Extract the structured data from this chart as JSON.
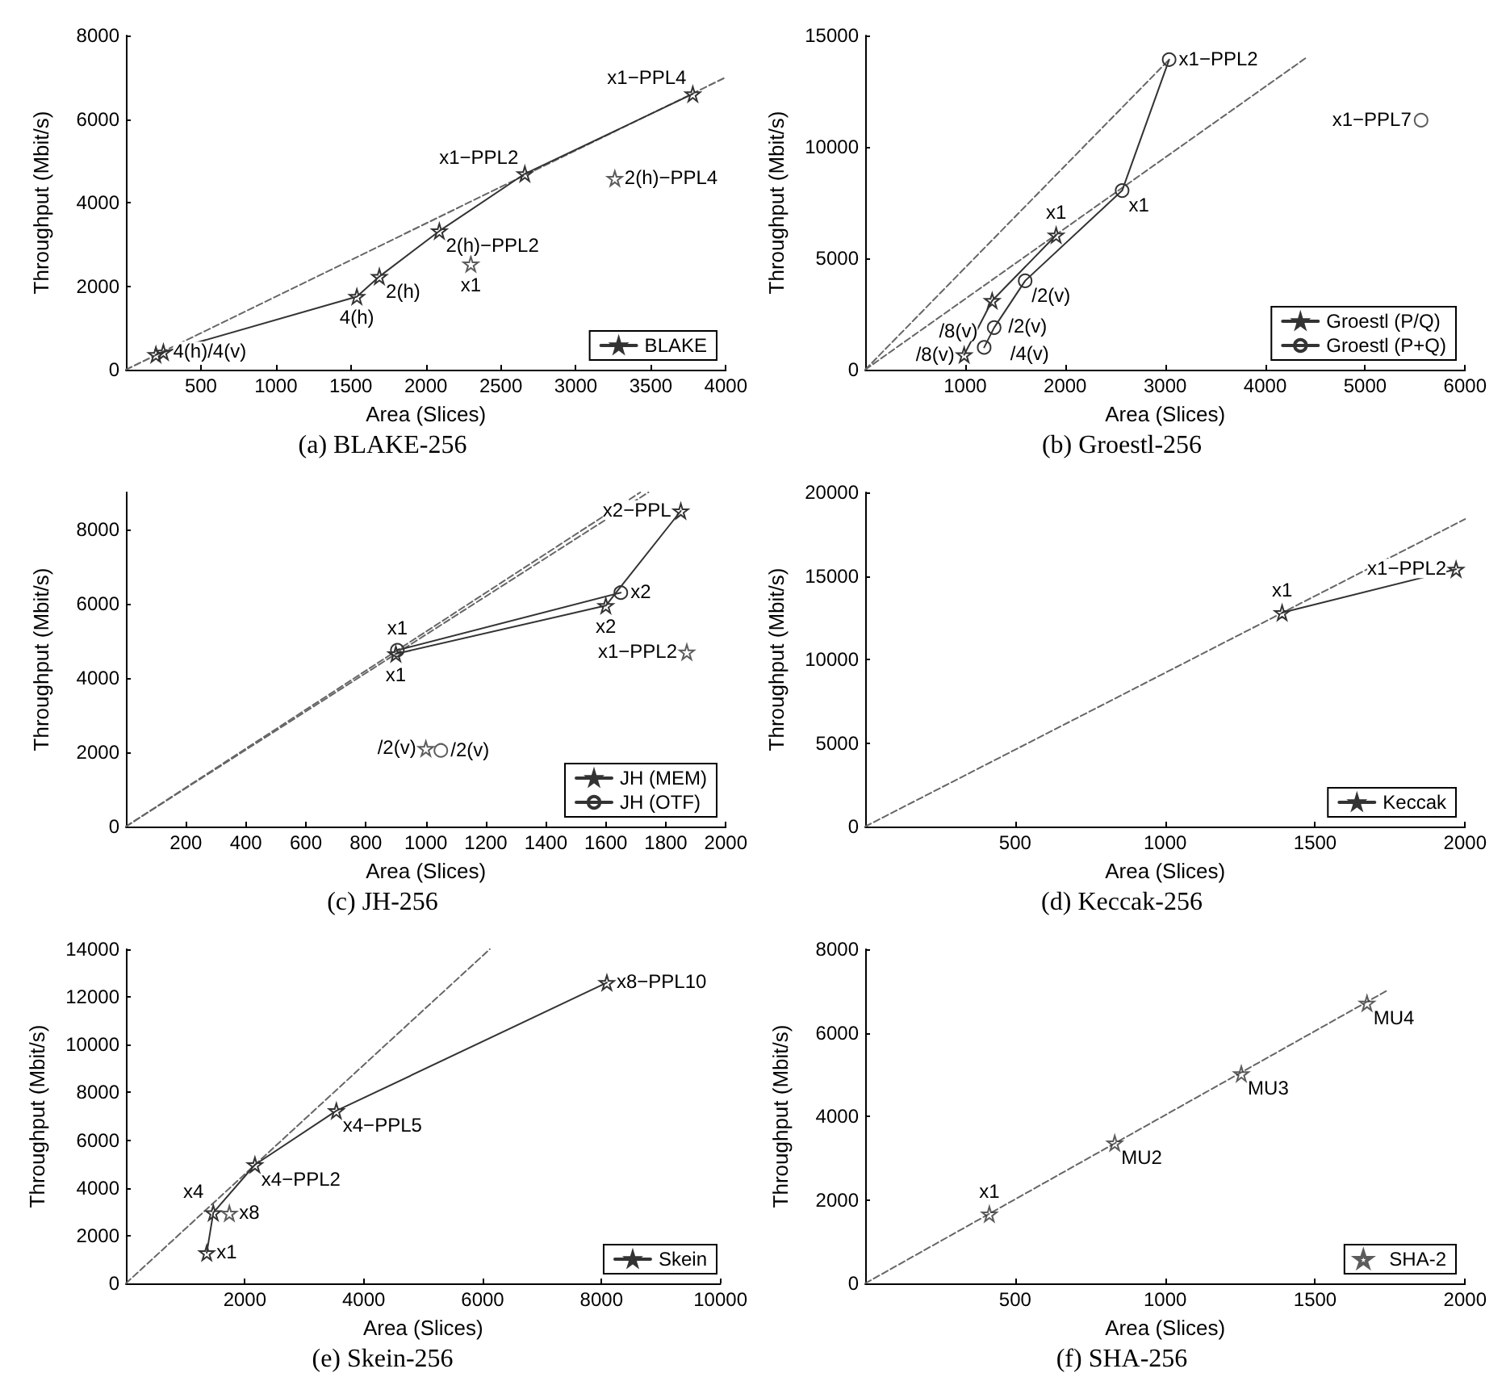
{
  "chart_data": [
    {
      "type": "line",
      "title": "(a) BLAKE-256",
      "xlabel": "Area (Slices)",
      "ylabel": "Throughput (Mbit/s)",
      "xlim": [
        0,
        4000
      ],
      "xticks": [
        500,
        1000,
        1500,
        2000,
        2500,
        3000,
        3500,
        4000
      ],
      "ylim": [
        0,
        8000
      ],
      "yticks": [
        0,
        2000,
        4000,
        6000,
        8000
      ],
      "legend": "bottom right",
      "series": [
        {
          "name": "BLAKE",
          "color": "#333333",
          "marker": "star",
          "x": [
            200,
            250,
            1540,
            1690,
            2090,
            2660,
            3780
          ],
          "values": [
            360,
            420,
            1750,
            2230,
            3320,
            4690,
            6600
          ]
        },
        {
          "type": "scatter",
          "color": "#333333",
          "marker": "star",
          "x": [
            2300,
            3260
          ],
          "values": [
            2530,
            4580
          ]
        },
        {
          "color": "#666666",
          "marker": "none",
          "line_style": "dashed",
          "x": [
            0,
            4000
          ],
          "values": [
            0,
            7000
          ]
        }
      ],
      "annotations": [
        {
          "text": "4(h)/4(v)",
          "x": 250,
          "y": 420
        },
        {
          "text": "4(h)",
          "x": 1540,
          "y": 1750
        },
        {
          "text": "2(h)",
          "x": 1690,
          "y": 2230
        },
        {
          "text": "2(h)−PPL2",
          "x": 2090,
          "y": 3320
        },
        {
          "text": "x1−PPL2",
          "x": 2660,
          "y": 4690
        },
        {
          "text": "x1−PPL4",
          "x": 3780,
          "y": 6600
        },
        {
          "text": "x1",
          "x": 2300,
          "y": 2530
        },
        {
          "text": "2(h)−PPL4",
          "x": 3260,
          "y": 4580
        }
      ]
    },
    {
      "type": "line",
      "title": "(b) Groestl-256",
      "xlabel": "Area (Slices)",
      "ylabel": "Throughput (Mbit/s)",
      "xlim": [
        0,
        6000
      ],
      "xticks": [
        1000,
        2000,
        3000,
        4000,
        5000,
        6000
      ],
      "ylim": [
        0,
        15000
      ],
      "yticks": [
        0,
        5000,
        10000,
        15000
      ],
      "legend": "bottom right",
      "series": [
        {
          "name": "Groestl (P/Q)",
          "color": "#333333",
          "marker": "star",
          "x": [
            990,
            1270,
            1910
          ],
          "values": [
            670,
            3100,
            6040
          ]
        },
        {
          "name": "Groestl (P+Q)",
          "color": "#333333",
          "marker": "circle",
          "x": [
            1190,
            1290,
            1600,
            2570,
            3040
          ],
          "values": [
            1000,
            1890,
            3990,
            8040,
            13920
          ]
        },
        {
          "type": "scatter",
          "color": "#333333",
          "marker": "circle",
          "x": [
            5560
          ],
          "values": [
            11200
          ]
        },
        {
          "color": "#666666",
          "marker": "none",
          "line_style": "dashed",
          "x": [
            0,
            3040
          ],
          "values": [
            0,
            13920
          ]
        },
        {
          "color": "#666666",
          "marker": "none",
          "line_style": "dashed",
          "x": [
            0,
            4410
          ],
          "values": [
            0,
            14000
          ]
        }
      ],
      "annotations": [
        {
          "text": "/8(v)",
          "x": 990,
          "y": 670
        },
        {
          "text": "/2(v)",
          "x": 1270,
          "y": 3100
        },
        {
          "text": "x1",
          "x": 1910,
          "y": 6040
        },
        {
          "text": "/8(v)",
          "x": 1190,
          "y": 1000
        },
        {
          "text": "/4(v)",
          "x": 1290,
          "y": 1890
        },
        {
          "text": "/2(v)",
          "x": 1600,
          "y": 3990
        },
        {
          "text": "x1",
          "x": 2570,
          "y": 8040
        },
        {
          "text": "x1−PPL2",
          "x": 3040,
          "y": 13920
        },
        {
          "text": "x1−PPL7",
          "x": 5560,
          "y": 11200
        }
      ]
    },
    {
      "type": "line",
      "title": "(c) JH-256",
      "xlabel": "Area (Slices)",
      "ylabel": "Throughput (Mbit/s)",
      "xlim": [
        0,
        2000
      ],
      "xticks": [
        200,
        400,
        600,
        800,
        1000,
        1200,
        1400,
        1600,
        1800,
        2000
      ],
      "ylim": [
        0,
        9000
      ],
      "yticks": [
        0,
        2000,
        4000,
        6000,
        8000
      ],
      "legend": "bottom right",
      "series": [
        {
          "name": "JH (MEM)",
          "color": "#333333",
          "marker": "star",
          "x": [
            900,
            1600,
            1850
          ],
          "values": [
            4650,
            5950,
            8500
          ]
        },
        {
          "name": "JH (OTF)",
          "color": "#333333",
          "marker": "circle",
          "x": [
            905,
            1650
          ],
          "values": [
            4750,
            6300
          ]
        },
        {
          "type": "scatter",
          "color": "#333333",
          "marker": "star",
          "x": [
            1000,
            1870
          ],
          "values": [
            2100,
            4700
          ]
        },
        {
          "type": "scatter",
          "color": "#333333",
          "marker": "circle",
          "x": [
            1050
          ],
          "values": [
            2050
          ]
        },
        {
          "color": "#666666",
          "marker": "none",
          "line_style": "dashed",
          "x": [
            0,
            1742
          ],
          "values": [
            0,
            9000
          ]
        },
        {
          "color": "#666666",
          "marker": "none",
          "line_style": "dashed",
          "x": [
            0,
            1715
          ],
          "values": [
            0,
            9000
          ]
        }
      ],
      "annotations": [
        {
          "text": "x1",
          "x": 900,
          "y": 4650
        },
        {
          "text": "x1",
          "x": 905,
          "y": 4750
        },
        {
          "text": "x2",
          "x": 1600,
          "y": 5950
        },
        {
          "text": "x2",
          "x": 1650,
          "y": 6300
        },
        {
          "text": "x2−PPL",
          "x": 1850,
          "y": 8500
        },
        {
          "text": "x1−PPL2",
          "x": 1870,
          "y": 4700
        },
        {
          "text": "/2(v)",
          "x": 1000,
          "y": 2100
        },
        {
          "text": "/2(v)",
          "x": 1050,
          "y": 2050
        }
      ]
    },
    {
      "type": "line",
      "title": "(d) Keccak-256",
      "xlabel": "Area (Slices)",
      "ylabel": "Throughput (Mbit/s)",
      "xlim": [
        0,
        2000
      ],
      "xticks": [
        500,
        1000,
        1500,
        2000
      ],
      "ylim": [
        0,
        20000
      ],
      "yticks": [
        0,
        5000,
        10000,
        15000,
        20000
      ],
      "legend": "bottom right",
      "series": [
        {
          "name": "Keccak",
          "color": "#333333",
          "marker": "star",
          "x": [
            1390,
            1970
          ],
          "values": [
            12800,
            15400
          ]
        },
        {
          "color": "#666666",
          "marker": "none",
          "line_style": "dashed",
          "x": [
            0,
            2000
          ],
          "values": [
            0,
            18400
          ]
        }
      ],
      "annotations": [
        {
          "text": "x1",
          "x": 1390,
          "y": 12800
        },
        {
          "text": "x1−PPL2",
          "x": 1970,
          "y": 15400
        }
      ]
    },
    {
      "type": "line",
      "title": "(e) Skein-256",
      "xlabel": "Area (Slices)",
      "ylabel": "Throughput (Mbit/s)",
      "xlim": [
        0,
        10000
      ],
      "xticks": [
        2000,
        4000,
        6000,
        8000,
        10000
      ],
      "ylim": [
        0,
        14000
      ],
      "yticks": [
        0,
        2000,
        4000,
        6000,
        8000,
        10000,
        12000,
        14000
      ],
      "legend": "bottom right",
      "series": [
        {
          "name": "Skein",
          "color": "#333333",
          "marker": "star",
          "x": [
            1360,
            1470,
            2170,
            3540,
            8090
          ],
          "values": [
            1280,
            2960,
            4970,
            7230,
            12600
          ]
        },
        {
          "type": "scatter",
          "color": "#333333",
          "marker": "star",
          "x": [
            1740
          ],
          "values": [
            2940
          ]
        },
        {
          "color": "#666666",
          "marker": "none",
          "line_style": "dashed",
          "x": [
            0,
            6120
          ],
          "values": [
            0,
            14000
          ]
        }
      ],
      "annotations": [
        {
          "text": "x1",
          "x": 1360,
          "y": 1280
        },
        {
          "text": "x4",
          "x": 1470,
          "y": 2960
        },
        {
          "text": "x8",
          "x": 1740,
          "y": 2940
        },
        {
          "text": "x4−PPL2",
          "x": 2170,
          "y": 4970
        },
        {
          "text": "x4−PPL5",
          "x": 3540,
          "y": 7230
        },
        {
          "text": "x8−PPL10",
          "x": 8090,
          "y": 12600
        }
      ]
    },
    {
      "type": "scatter",
      "title": "(f) SHA-256",
      "xlabel": "Area (Slices)",
      "ylabel": "Throughput (Mbit/s)",
      "xlim": [
        0,
        2000
      ],
      "xticks": [
        500,
        1000,
        1500,
        2000
      ],
      "ylim": [
        0,
        8000
      ],
      "yticks": [
        0,
        2000,
        4000,
        6000,
        8000
      ],
      "legend": "bottom right",
      "series": [
        {
          "name": "SHA-2",
          "color": "#333333",
          "marker": "star",
          "x": [
            414,
            832,
            1254,
            1673
          ],
          "values": [
            1660,
            3360,
            5020,
            6710
          ]
        },
        {
          "type": "line",
          "color": "#666666",
          "marker": "none",
          "line_style": "dashed",
          "x": [
            0,
            1745
          ],
          "values": [
            0,
            7030
          ]
        }
      ],
      "annotations": [
        {
          "text": "x1",
          "x": 414,
          "y": 1660
        },
        {
          "text": "MU2",
          "x": 832,
          "y": 3360
        },
        {
          "text": "MU3",
          "x": 1254,
          "y": 5020
        },
        {
          "text": "MU4",
          "x": 1673,
          "y": 6710
        }
      ]
    }
  ]
}
